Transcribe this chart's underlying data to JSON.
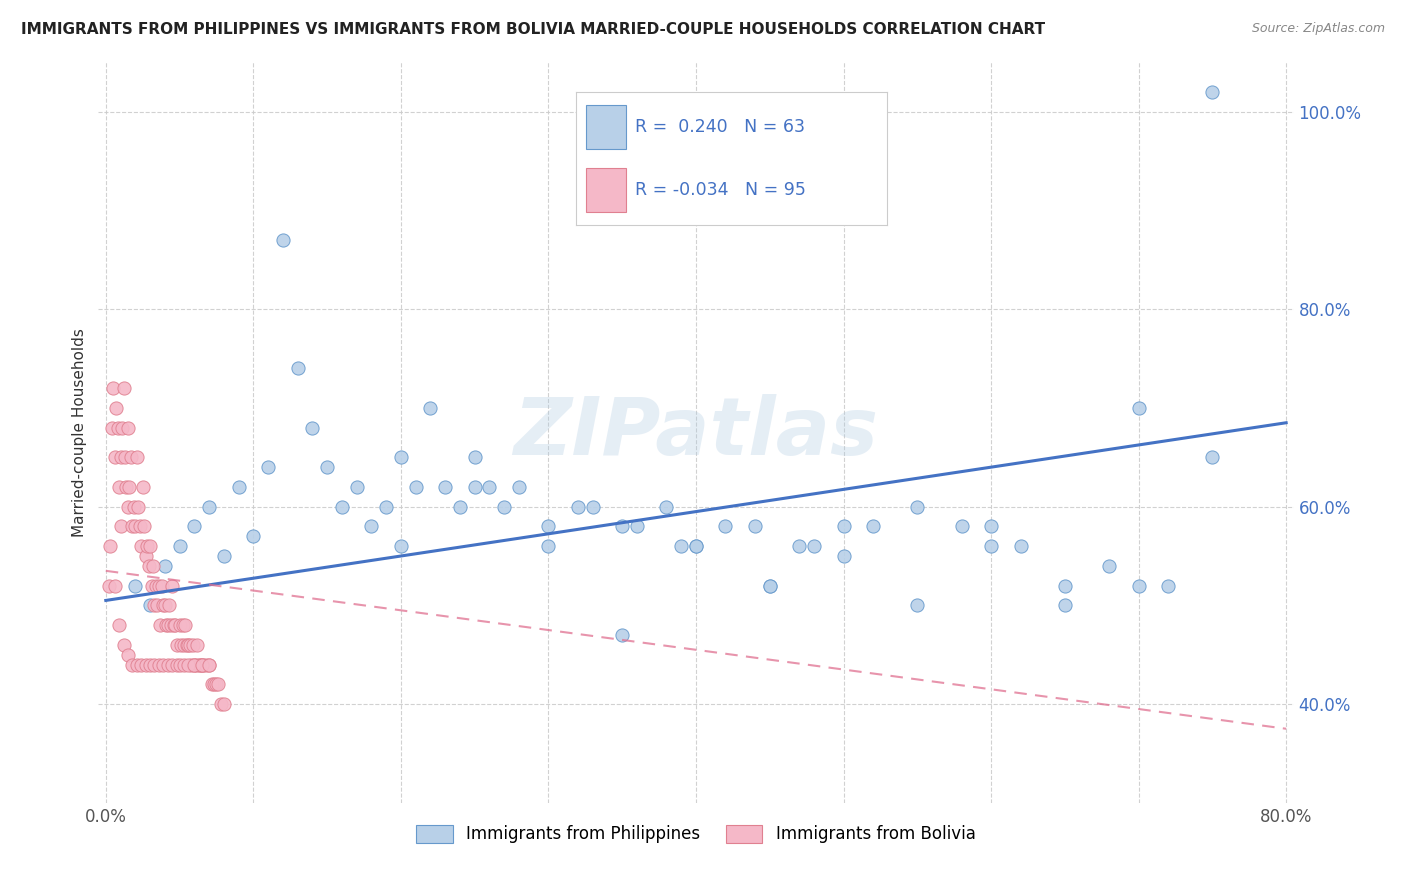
{
  "title": "IMMIGRANTS FROM PHILIPPINES VS IMMIGRANTS FROM BOLIVIA MARRIED-COUPLE HOUSEHOLDS CORRELATION CHART",
  "source": "Source: ZipAtlas.com",
  "legend_label1": "Immigrants from Philippines",
  "legend_label2": "Immigrants from Bolivia",
  "legend_r1": "R =  0.240",
  "legend_n1": "N = 63",
  "legend_r2": "R = -0.034",
  "legend_n2": "N = 95",
  "color_blue": "#b8d0e8",
  "color_pink": "#f5b8c8",
  "color_blue_edge": "#6699cc",
  "color_pink_edge": "#e08090",
  "color_blue_line": "#4472c4",
  "color_pink_line": "#e07090",
  "watermark": "ZIPatlas",
  "xlim": [
    0.0,
    0.8
  ],
  "ylim": [
    0.3,
    1.05
  ],
  "x_ticks": [
    0.0,
    0.1,
    0.2,
    0.3,
    0.4,
    0.5,
    0.6,
    0.7,
    0.8
  ],
  "y_ticks": [
    0.4,
    0.6,
    0.8,
    1.0
  ],
  "blue_scatter_x": [
    0.02,
    0.03,
    0.04,
    0.05,
    0.06,
    0.07,
    0.08,
    0.09,
    0.1,
    0.11,
    0.12,
    0.13,
    0.14,
    0.15,
    0.16,
    0.17,
    0.18,
    0.19,
    0.2,
    0.21,
    0.22,
    0.23,
    0.24,
    0.25,
    0.26,
    0.27,
    0.28,
    0.3,
    0.32,
    0.33,
    0.35,
    0.36,
    0.38,
    0.39,
    0.4,
    0.42,
    0.44,
    0.45,
    0.47,
    0.48,
    0.5,
    0.52,
    0.55,
    0.58,
    0.6,
    0.62,
    0.65,
    0.68,
    0.7,
    0.72,
    0.75,
    0.2,
    0.25,
    0.3,
    0.35,
    0.4,
    0.45,
    0.5,
    0.55,
    0.6,
    0.65,
    0.7,
    0.75
  ],
  "blue_scatter_y": [
    0.52,
    0.5,
    0.54,
    0.56,
    0.58,
    0.6,
    0.55,
    0.62,
    0.57,
    0.64,
    0.87,
    0.74,
    0.68,
    0.64,
    0.6,
    0.62,
    0.58,
    0.6,
    0.65,
    0.62,
    0.7,
    0.62,
    0.6,
    0.62,
    0.62,
    0.6,
    0.62,
    0.58,
    0.6,
    0.6,
    0.58,
    0.58,
    0.6,
    0.56,
    0.56,
    0.58,
    0.58,
    0.52,
    0.56,
    0.56,
    0.55,
    0.58,
    0.6,
    0.58,
    0.58,
    0.56,
    0.52,
    0.54,
    0.7,
    0.52,
    1.02,
    0.56,
    0.65,
    0.56,
    0.47,
    0.56,
    0.52,
    0.58,
    0.5,
    0.56,
    0.5,
    0.52,
    0.65
  ],
  "pink_scatter_x": [
    0.002,
    0.004,
    0.005,
    0.006,
    0.007,
    0.008,
    0.009,
    0.01,
    0.01,
    0.011,
    0.012,
    0.013,
    0.014,
    0.015,
    0.015,
    0.016,
    0.017,
    0.018,
    0.019,
    0.02,
    0.021,
    0.022,
    0.023,
    0.024,
    0.025,
    0.026,
    0.027,
    0.028,
    0.029,
    0.03,
    0.031,
    0.032,
    0.033,
    0.034,
    0.035,
    0.036,
    0.037,
    0.038,
    0.039,
    0.04,
    0.041,
    0.042,
    0.043,
    0.044,
    0.045,
    0.046,
    0.047,
    0.048,
    0.05,
    0.051,
    0.052,
    0.053,
    0.054,
    0.055,
    0.056,
    0.057,
    0.058,
    0.059,
    0.06,
    0.061,
    0.062,
    0.063,
    0.064,
    0.065,
    0.066,
    0.068,
    0.07,
    0.072,
    0.073,
    0.075,
    0.076,
    0.078,
    0.08,
    0.003,
    0.006,
    0.009,
    0.012,
    0.015,
    0.018,
    0.021,
    0.024,
    0.027,
    0.03,
    0.033,
    0.036,
    0.039,
    0.042,
    0.045,
    0.048,
    0.05,
    0.053,
    0.056,
    0.06,
    0.065,
    0.07
  ],
  "pink_scatter_y": [
    0.52,
    0.68,
    0.72,
    0.65,
    0.7,
    0.68,
    0.62,
    0.65,
    0.58,
    0.68,
    0.72,
    0.65,
    0.62,
    0.68,
    0.6,
    0.62,
    0.65,
    0.58,
    0.6,
    0.58,
    0.65,
    0.6,
    0.58,
    0.56,
    0.62,
    0.58,
    0.55,
    0.56,
    0.54,
    0.56,
    0.52,
    0.54,
    0.5,
    0.52,
    0.5,
    0.52,
    0.48,
    0.52,
    0.5,
    0.5,
    0.48,
    0.48,
    0.5,
    0.48,
    0.52,
    0.48,
    0.48,
    0.46,
    0.48,
    0.46,
    0.48,
    0.46,
    0.48,
    0.46,
    0.46,
    0.46,
    0.44,
    0.46,
    0.44,
    0.44,
    0.46,
    0.44,
    0.44,
    0.44,
    0.44,
    0.44,
    0.44,
    0.42,
    0.42,
    0.42,
    0.42,
    0.4,
    0.4,
    0.56,
    0.52,
    0.48,
    0.46,
    0.45,
    0.44,
    0.44,
    0.44,
    0.44,
    0.44,
    0.44,
    0.44,
    0.44,
    0.44,
    0.44,
    0.44,
    0.44,
    0.44,
    0.44,
    0.44,
    0.44,
    0.44
  ]
}
